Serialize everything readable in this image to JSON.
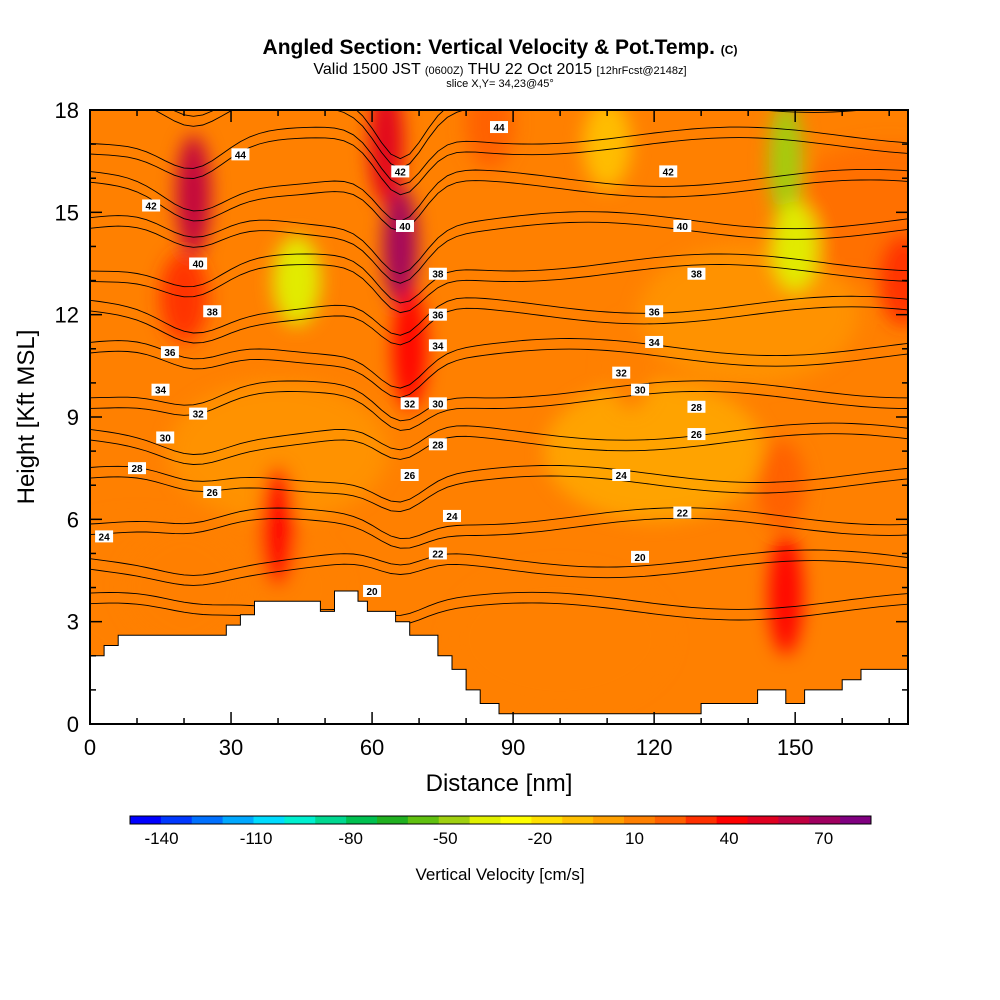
{
  "header": {
    "title": "Angled Section: Vertical Velocity & Pot.Temp.",
    "title_suffix": "(C)",
    "subtitle_a": "Valid 1500 JST",
    "subtitle_b": "(0600Z)",
    "subtitle_c": "THU 22 Oct 2015",
    "subtitle_d": "[12hrFcst@2148z]",
    "slice": "slice X,Y= 34,23@45°"
  },
  "chart_data": {
    "type": "heatmap",
    "xlabel": "Distance [nm]",
    "ylabel": "Height [Kft MSL]",
    "xlim": [
      0,
      174
    ],
    "ylim": [
      0,
      18
    ],
    "x_ticks": [
      0,
      30,
      60,
      90,
      120,
      150
    ],
    "x_tick_labels": [
      "0",
      "30",
      "60",
      "90",
      "120",
      "150"
    ],
    "y_ticks": [
      0,
      3,
      6,
      9,
      12,
      15,
      18
    ],
    "y_tick_labels": [
      "0",
      "3",
      "6",
      "9",
      "12",
      "15",
      "18"
    ],
    "colorbar": {
      "label": "Vertical Velocity [cm/s]",
      "tick_labels": [
        "-140",
        "-110",
        "-80",
        "-50",
        "-20",
        "10",
        "40",
        "70"
      ],
      "tick_values": [
        -140,
        -110,
        -80,
        -50,
        -20,
        10,
        40,
        70
      ],
      "min": -150,
      "max": 85,
      "colors": [
        "#0000ff",
        "#0038ff",
        "#0070ff",
        "#00a8ff",
        "#00dcff",
        "#00f0d0",
        "#00d890",
        "#00c050",
        "#20b020",
        "#60c010",
        "#a0d010",
        "#e0f000",
        "#ffff00",
        "#ffe000",
        "#ffc000",
        "#ffa000",
        "#ff8000",
        "#ff6000",
        "#ff3000",
        "#ff0000",
        "#e00020",
        "#c00040",
        "#a00060",
        "#800080"
      ]
    },
    "background_field": [
      {
        "x": 0,
        "y": 0,
        "value": 10
      },
      {
        "x": 10,
        "y": 4,
        "value": 13
      },
      {
        "x": 30,
        "y": 4,
        "value": 8
      },
      {
        "x": 100,
        "y": 2.5,
        "value": 12
      },
      {
        "x": 40,
        "y": 8,
        "value": 5
      },
      {
        "x": 120,
        "y": 8,
        "value": -5
      },
      {
        "x": 140,
        "y": 12,
        "value": 2
      },
      {
        "x": 170,
        "y": 15,
        "value": 20
      }
    ],
    "vertical_velocity_features": [
      {
        "x": 22,
        "y": 15.5,
        "value": 65
      },
      {
        "x": 20,
        "y": 12.5,
        "value": 30
      },
      {
        "x": 66,
        "y": 14,
        "value": 72
      },
      {
        "x": 63,
        "y": 17,
        "value": 55
      },
      {
        "x": 68,
        "y": 11,
        "value": 45
      },
      {
        "x": 40,
        "y": 5.8,
        "value": 45
      },
      {
        "x": 148,
        "y": 3.8,
        "value": 45
      },
      {
        "x": 147,
        "y": 7,
        "value": 22
      },
      {
        "x": 44,
        "y": 13,
        "value": -35
      },
      {
        "x": 148,
        "y": 16.5,
        "value": -52
      },
      {
        "x": 150,
        "y": 14,
        "value": -35
      },
      {
        "x": 110,
        "y": 17,
        "value": -10
      },
      {
        "x": 173,
        "y": 13,
        "value": 30
      },
      {
        "x": 85,
        "y": 17.6,
        "value": 25
      },
      {
        "x": 115,
        "y": 10.5,
        "value": 8
      }
    ],
    "theta_contours": [
      20,
      22,
      24,
      26,
      28,
      30,
      32,
      34,
      36,
      38,
      40,
      42,
      44
    ],
    "contour_labels": [
      {
        "text": "44",
        "x": 32,
        "y": 16.7
      },
      {
        "text": "42",
        "x": 13,
        "y": 15.2
      },
      {
        "text": "40",
        "x": 23,
        "y": 13.5
      },
      {
        "text": "38",
        "x": 26,
        "y": 12.1
      },
      {
        "text": "36",
        "x": 17,
        "y": 10.9
      },
      {
        "text": "34",
        "x": 15,
        "y": 9.8
      },
      {
        "text": "32",
        "x": 23,
        "y": 9.1
      },
      {
        "text": "30",
        "x": 16,
        "y": 8.4
      },
      {
        "text": "28",
        "x": 10,
        "y": 7.5
      },
      {
        "text": "26",
        "x": 26,
        "y": 6.8
      },
      {
        "text": "24",
        "x": 3,
        "y": 5.5
      },
      {
        "text": "42",
        "x": 66,
        "y": 16.2
      },
      {
        "text": "40",
        "x": 67,
        "y": 14.6
      },
      {
        "text": "38",
        "x": 74,
        "y": 13.2
      },
      {
        "text": "36",
        "x": 74,
        "y": 12.0
      },
      {
        "text": "34",
        "x": 74,
        "y": 11.1
      },
      {
        "text": "32",
        "x": 68,
        "y": 9.4
      },
      {
        "text": "30",
        "x": 74,
        "y": 9.4
      },
      {
        "text": "28",
        "x": 74,
        "y": 8.2
      },
      {
        "text": "26",
        "x": 68,
        "y": 7.3
      },
      {
        "text": "24",
        "x": 77,
        "y": 6.1
      },
      {
        "text": "22",
        "x": 74,
        "y": 5.0
      },
      {
        "text": "20",
        "x": 60,
        "y": 3.9
      },
      {
        "text": "44",
        "x": 87,
        "y": 17.5
      },
      {
        "text": "42",
        "x": 123,
        "y": 16.2
      },
      {
        "text": "40",
        "x": 126,
        "y": 14.6
      },
      {
        "text": "38",
        "x": 129,
        "y": 13.2
      },
      {
        "text": "36",
        "x": 120,
        "y": 12.1
      },
      {
        "text": "34",
        "x": 120,
        "y": 11.2
      },
      {
        "text": "32",
        "x": 113,
        "y": 10.3
      },
      {
        "text": "30",
        "x": 117,
        "y": 9.8
      },
      {
        "text": "28",
        "x": 129,
        "y": 9.3
      },
      {
        "text": "26",
        "x": 129,
        "y": 8.5
      },
      {
        "text": "24",
        "x": 113,
        "y": 7.3
      },
      {
        "text": "22",
        "x": 126,
        "y": 6.2
      },
      {
        "text": "20",
        "x": 117,
        "y": 4.9
      }
    ],
    "terrain": [
      [
        0,
        2
      ],
      [
        3,
        2
      ],
      [
        3,
        2.3
      ],
      [
        6,
        2.3
      ],
      [
        6,
        2.6
      ],
      [
        29,
        2.6
      ],
      [
        29,
        2.9
      ],
      [
        32,
        2.9
      ],
      [
        32,
        3.2
      ],
      [
        35,
        3.2
      ],
      [
        35,
        3.6
      ],
      [
        49,
        3.6
      ],
      [
        49,
        3.3
      ],
      [
        52,
        3.3
      ],
      [
        52,
        3.9
      ],
      [
        57,
        3.9
      ],
      [
        57,
        3.6
      ],
      [
        59,
        3.6
      ],
      [
        59,
        3.3
      ],
      [
        65,
        3.3
      ],
      [
        65,
        3.0
      ],
      [
        68,
        3.0
      ],
      [
        68,
        2.6
      ],
      [
        74,
        2.6
      ],
      [
        74,
        2.0
      ],
      [
        77,
        2.0
      ],
      [
        77,
        1.6
      ],
      [
        80,
        1.6
      ],
      [
        80,
        1.0
      ],
      [
        83,
        1.0
      ],
      [
        83,
        0.6
      ],
      [
        87,
        0.6
      ],
      [
        87,
        0.3
      ],
      [
        130,
        0.3
      ],
      [
        130,
        0.6
      ],
      [
        142,
        0.6
      ],
      [
        142,
        1.0
      ],
      [
        148,
        1.0
      ],
      [
        148,
        0.6
      ],
      [
        152,
        0.6
      ],
      [
        152,
        1.0
      ],
      [
        160,
        1.0
      ],
      [
        160,
        1.3
      ],
      [
        164,
        1.3
      ],
      [
        164,
        1.6
      ],
      [
        174,
        1.6
      ]
    ]
  }
}
